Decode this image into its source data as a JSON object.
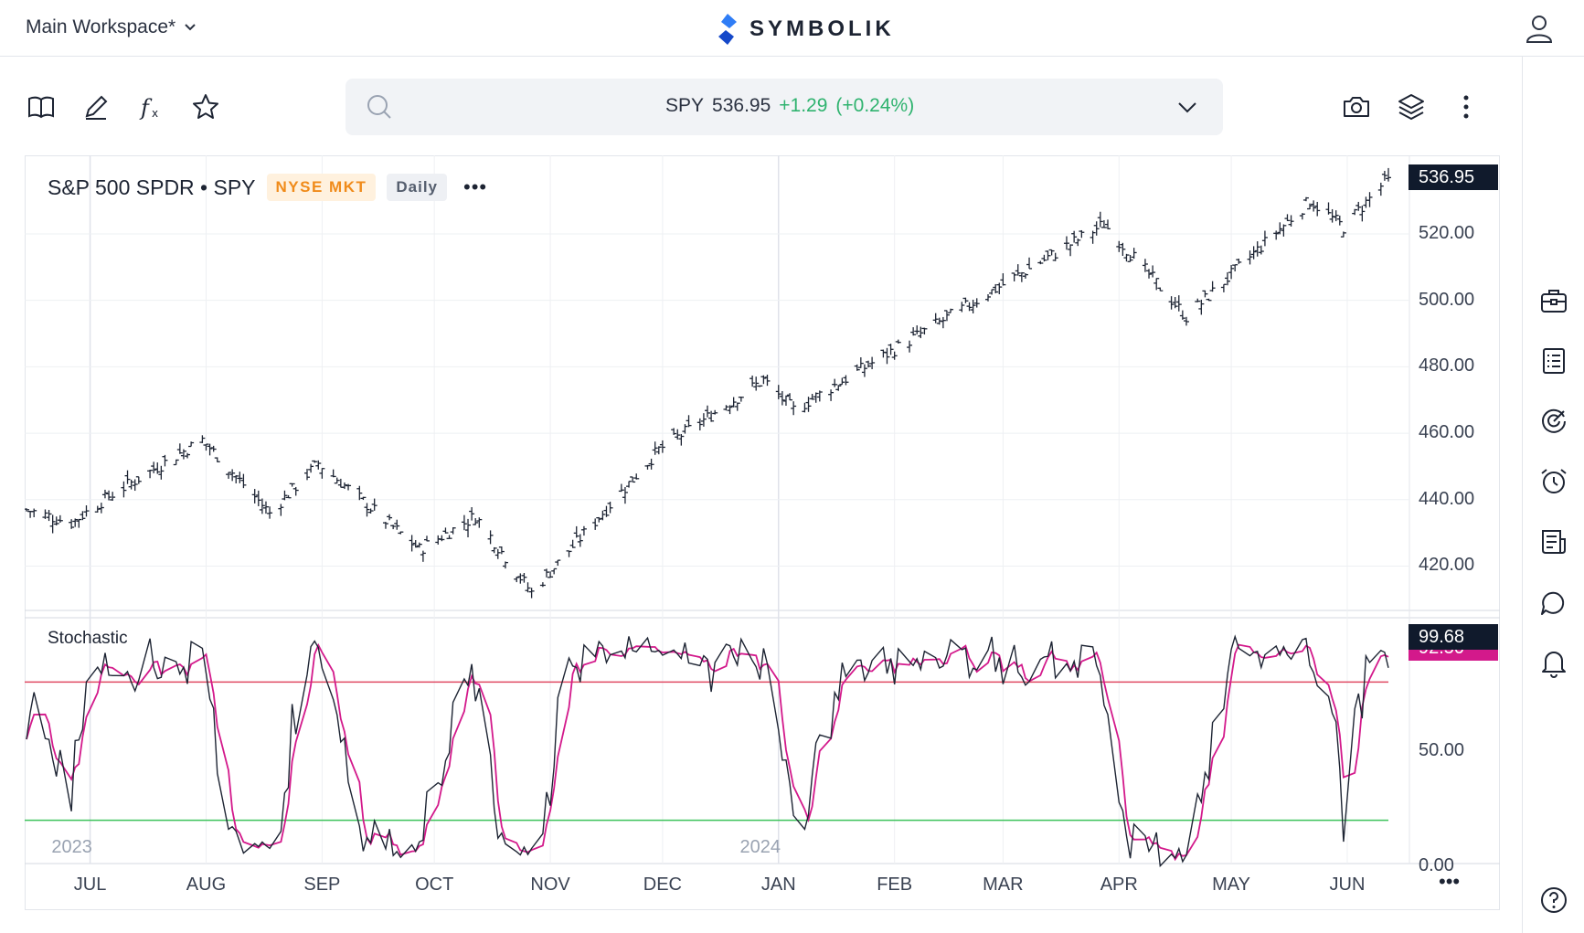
{
  "topbar": {
    "workspace": "Main Workspace*",
    "brand": "SYMBOLIK",
    "icons": {
      "workspace_chevron": "chevron-down-icon",
      "user": "user-icon",
      "logo": "symbolik-logo-icon"
    }
  },
  "toolbar": {
    "icons": [
      "book-icon",
      "pencil-icon",
      "function-icon",
      "star-icon"
    ],
    "right_icons": [
      "camera-icon",
      "layers-icon",
      "more-vertical-icon"
    ]
  },
  "search": {
    "symbol": "SPY",
    "last": "536.95",
    "change": "+1.29",
    "change_pct": "(+0.24%)",
    "change_color": "#2fb36f"
  },
  "chart_header": {
    "title": "S&P 500 SPDR • SPY",
    "exchange": "NYSE MKT",
    "interval": "Daily",
    "more": "•••"
  },
  "indicator": {
    "name": "Stochastic"
  },
  "right_rail": [
    "briefcase-icon",
    "list-icon",
    "radar-icon",
    "alarm-clock-icon",
    "news-icon",
    "chat-icon",
    "bell-icon",
    "help-icon"
  ],
  "axis_more": "•••",
  "colors": {
    "price_bar": "#1d2433",
    "k_line": "#1d2433",
    "d_line": "#d3198b",
    "overbought": "#e04a63",
    "oversold": "#3cc25a",
    "last_price_tag": "#101a2c",
    "k_tag": "#101a2c",
    "d_tag": "#d3198b"
  },
  "chart_data": [
    {
      "type": "ohlc",
      "series": [
        {
          "name": "SPY",
          "key_points": [
            {
              "x": "2023-06-14",
              "y": 437
            },
            {
              "x": "2023-06-26",
              "y": 433
            },
            {
              "x": "2023-07-06",
              "y": 441
            },
            {
              "x": "2023-07-31",
              "y": 458
            },
            {
              "x": "2023-08-18",
              "y": 436
            },
            {
              "x": "2023-08-31",
              "y": 451
            },
            {
              "x": "2023-09-27",
              "y": 425
            },
            {
              "x": "2023-10-12",
              "y": 435
            },
            {
              "x": "2023-10-27",
              "y": 412
            },
            {
              "x": "2023-11-30",
              "y": 455
            },
            {
              "x": "2023-12-28",
              "y": 476
            },
            {
              "x": "2024-01-05",
              "y": 467
            },
            {
              "x": "2024-03-28",
              "y": 523
            },
            {
              "x": "2024-04-19",
              "y": 495
            },
            {
              "x": "2024-05-22",
              "y": 530
            },
            {
              "x": "2024-05-31",
              "y": 522
            },
            {
              "x": "2024-06-12",
              "y": 536.95
            }
          ]
        }
      ],
      "y_ticks": [
        "520.00",
        "500.00",
        "480.00",
        "460.00",
        "440.00",
        "420.00"
      ],
      "last_price": "536.95",
      "ylim": [
        405,
        542
      ]
    },
    {
      "type": "line",
      "title": "Stochastic",
      "series": [
        {
          "name": "%K"
        },
        {
          "name": "%D"
        }
      ],
      "y_ticks": [
        "50.00",
        "0.00"
      ],
      "levels": [
        80,
        20
      ],
      "k_last": "99.68",
      "d_last": "92.50",
      "ylim": [
        -2,
        100
      ]
    }
  ],
  "x_axis": {
    "months": [
      "JUL",
      "AUG",
      "SEP",
      "OCT",
      "NOV",
      "DEC",
      "JAN",
      "FEB",
      "MAR",
      "APR",
      "MAY",
      "JUN"
    ],
    "years": [
      "2023",
      "2024"
    ]
  }
}
